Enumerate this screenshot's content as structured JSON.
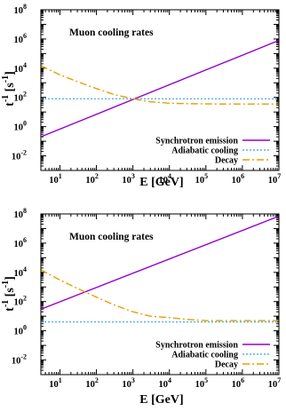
{
  "chart_data": [
    {
      "type": "line",
      "title": "Muon cooling rates",
      "xlabel": "E  [GeV]",
      "ylabel": "t^-1 [s^-1]",
      "xscale": "log",
      "yscale": "log",
      "xlim": [
        3,
        10000000
      ],
      "ylim": [
        0.001,
        100000000
      ],
      "x_tick_exponents": [
        1,
        2,
        3,
        4,
        5,
        6,
        7
      ],
      "y_tick_exponents": [
        -2,
        0,
        2,
        4,
        6,
        8
      ],
      "legend_position": "bottom-right",
      "series": [
        {
          "name": "Synchrotron emission",
          "color": "#9400D3",
          "dash": "solid",
          "x": [
            3,
            10000000
          ],
          "y": [
            0.2,
            800000
          ]
        },
        {
          "name": "Adiabatic cooling",
          "color": "#56B4E9",
          "dash": "dotted",
          "x": [
            3,
            10000000
          ],
          "y": [
            80,
            80
          ]
        },
        {
          "name": "Decay",
          "color": "#E69F00",
          "dash": "dashdot",
          "x": [
            3,
            10,
            30,
            100,
            300,
            1000,
            3000,
            10000,
            30000,
            100000,
            300000,
            1000000,
            10000000
          ],
          "y": [
            15000,
            3500,
            1200,
            400,
            160,
            80,
            50,
            40,
            37,
            36,
            35,
            35,
            35
          ]
        }
      ]
    },
    {
      "type": "line",
      "title": "Muon cooling rates",
      "xlabel": "E  [GeV]",
      "ylabel": "t^-1 [s^-1]",
      "xscale": "log",
      "yscale": "log",
      "xlim": [
        3,
        10000000
      ],
      "ylim": [
        0.001,
        100000000
      ],
      "x_tick_exponents": [
        1,
        2,
        3,
        4,
        5,
        6,
        7
      ],
      "y_tick_exponents": [
        -2,
        0,
        2,
        4,
        6,
        8
      ],
      "legend_position": "bottom-right",
      "series": [
        {
          "name": "Synchrotron emission",
          "color": "#9400D3",
          "dash": "solid",
          "x": [
            3,
            10000000
          ],
          "y": [
            30,
            70000000
          ]
        },
        {
          "name": "Adiabatic cooling",
          "color": "#56B4E9",
          "dash": "dotted",
          "x": [
            3,
            10000000
          ],
          "y": [
            4,
            4
          ]
        },
        {
          "name": "Decay",
          "color": "#E69F00",
          "dash": "dashdot",
          "x": [
            3,
            10,
            30,
            100,
            300,
            1000,
            3000,
            10000,
            30000,
            100000,
            300000,
            1000000,
            10000000
          ],
          "y": [
            15000,
            3000,
            800,
            200,
            60,
            20,
            10,
            8,
            6,
            5,
            5,
            5,
            5
          ]
        }
      ]
    }
  ]
}
